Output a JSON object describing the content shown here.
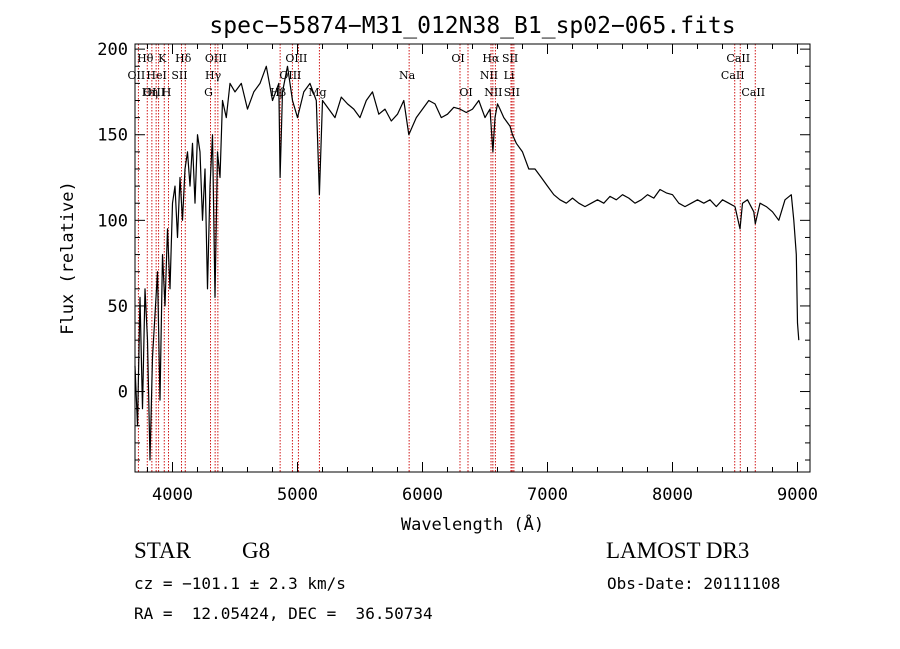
{
  "chart_data": {
    "type": "line",
    "title": "spec−55874−M31_012N38_B1_sp02−065.fits",
    "xlabel": "Wavelength (Å)",
    "ylabel": "Flux (relative)",
    "xlim": [
      3700,
      9100
    ],
    "ylim": [
      -47,
      203
    ],
    "x_ticks": [
      4000,
      5000,
      6000,
      7000,
      8000,
      9000
    ],
    "y_ticks": [
      0,
      50,
      100,
      150,
      200
    ],
    "series": [
      {
        "name": "spectrum",
        "x": [
          3700,
          3720,
          3740,
          3760,
          3780,
          3800,
          3820,
          3840,
          3860,
          3880,
          3900,
          3920,
          3940,
          3960,
          3980,
          4000,
          4020,
          4040,
          4060,
          4080,
          4100,
          4120,
          4140,
          4160,
          4180,
          4200,
          4220,
          4240,
          4260,
          4280,
          4300,
          4320,
          4340,
          4360,
          4380,
          4400,
          4430,
          4460,
          4500,
          4550,
          4600,
          4650,
          4700,
          4750,
          4800,
          4850,
          4861,
          4880,
          4920,
          4960,
          5000,
          5050,
          5100,
          5150,
          5175,
          5200,
          5250,
          5300,
          5350,
          5400,
          5450,
          5500,
          5550,
          5600,
          5650,
          5700,
          5750,
          5800,
          5850,
          5890,
          5950,
          6000,
          6050,
          6100,
          6150,
          6200,
          6250,
          6300,
          6350,
          6400,
          6450,
          6500,
          6540,
          6563,
          6580,
          6600,
          6620,
          6650,
          6700,
          6720,
          6750,
          6800,
          6850,
          6900,
          6950,
          7000,
          7050,
          7100,
          7150,
          7200,
          7250,
          7300,
          7350,
          7400,
          7450,
          7500,
          7550,
          7600,
          7650,
          7700,
          7750,
          7800,
          7850,
          7900,
          7950,
          8000,
          8050,
          8100,
          8150,
          8200,
          8250,
          8300,
          8350,
          8400,
          8450,
          8500,
          8540,
          8560,
          8600,
          8650,
          8662,
          8700,
          8750,
          8800,
          8850,
          8900,
          8950,
          8970,
          8990,
          9000,
          9010
        ],
        "y": [
          15,
          -20,
          55,
          -10,
          60,
          30,
          -40,
          20,
          45,
          70,
          -5,
          80,
          50,
          95,
          60,
          110,
          120,
          90,
          125,
          100,
          130,
          140,
          120,
          145,
          110,
          150,
          140,
          100,
          130,
          60,
          120,
          150,
          55,
          140,
          125,
          170,
          160,
          180,
          175,
          180,
          165,
          175,
          180,
          190,
          170,
          180,
          125,
          175,
          190,
          170,
          160,
          175,
          180,
          170,
          115,
          170,
          165,
          160,
          172,
          168,
          165,
          160,
          170,
          175,
          162,
          165,
          158,
          162,
          170,
          150,
          160,
          165,
          170,
          168,
          160,
          162,
          166,
          165,
          163,
          165,
          170,
          160,
          165,
          140,
          160,
          168,
          165,
          160,
          155,
          150,
          145,
          140,
          130,
          130,
          125,
          120,
          115,
          112,
          110,
          113,
          110,
          108,
          110,
          112,
          110,
          114,
          112,
          115,
          113,
          110,
          112,
          115,
          113,
          118,
          116,
          115,
          110,
          108,
          110,
          112,
          110,
          112,
          108,
          112,
          110,
          108,
          95,
          110,
          112,
          105,
          98,
          110,
          108,
          105,
          100,
          112,
          115,
          100,
          80,
          40,
          30
        ]
      }
    ],
    "lines": [
      {
        "label": "Hθ",
        "wavelength": 3798,
        "row": 1
      },
      {
        "label": "OII",
        "wavelength": 3727,
        "row": 2
      },
      {
        "label": "OIII",
        "wavelength": 3869,
        "row": 3
      },
      {
        "label": "K",
        "wavelength": 3934,
        "row": 1
      },
      {
        "label": "HeI",
        "wavelength": 3889,
        "row": 2
      },
      {
        "label": "Hη",
        "wavelength": 3835,
        "row": 3
      },
      {
        "label": "SII",
        "wavelength": 4072,
        "row": 2
      },
      {
        "label": "H",
        "wavelength": 3968,
        "row": 3
      },
      {
        "label": "Hδ",
        "wavelength": 4102,
        "row": 1
      },
      {
        "label": "OIII",
        "wavelength": 4363,
        "row": 1
      },
      {
        "label": "Hγ",
        "wavelength": 4341,
        "row": 2
      },
      {
        "label": "G",
        "wavelength": 4304,
        "row": 3
      },
      {
        "label": "OIII",
        "wavelength": 5007,
        "row": 1
      },
      {
        "label": "OIII",
        "wavelength": 4959,
        "row": 2
      },
      {
        "label": "Hβ",
        "wavelength": 4861,
        "row": 3
      },
      {
        "label": "Mg",
        "wavelength": 5175,
        "row": 3
      },
      {
        "label": "Na",
        "wavelength": 5893,
        "row": 2
      },
      {
        "label": "OI",
        "wavelength": 6300,
        "row": 1
      },
      {
        "label": "OI",
        "wavelength": 6364,
        "row": 3
      },
      {
        "label": "Hα",
        "wavelength": 6563,
        "row": 1
      },
      {
        "label": "SII",
        "wavelength": 6717,
        "row": 1
      },
      {
        "label": "NII",
        "wavelength": 6548,
        "row": 2
      },
      {
        "label": "Li",
        "wavelength": 6708,
        "row": 2
      },
      {
        "label": "NII",
        "wavelength": 6583,
        "row": 3
      },
      {
        "label": "SII",
        "wavelength": 6731,
        "row": 3
      },
      {
        "label": "CaII",
        "wavelength": 8542,
        "row": 1
      },
      {
        "label": "CaII",
        "wavelength": 8498,
        "row": 2
      },
      {
        "label": "CaII",
        "wavelength": 8662,
        "row": 3
      }
    ],
    "line_color": "#cc0000",
    "spectrum_color": "#000000"
  },
  "info": {
    "class_label": "STAR",
    "subclass": "G8",
    "survey": "LAMOST DR3",
    "cz": "cz = −101.1 ± 2.3 km/s",
    "obs_date": "Obs-Date: 20111108",
    "radec": "RA =  12.05424, DEC =  36.50734"
  }
}
